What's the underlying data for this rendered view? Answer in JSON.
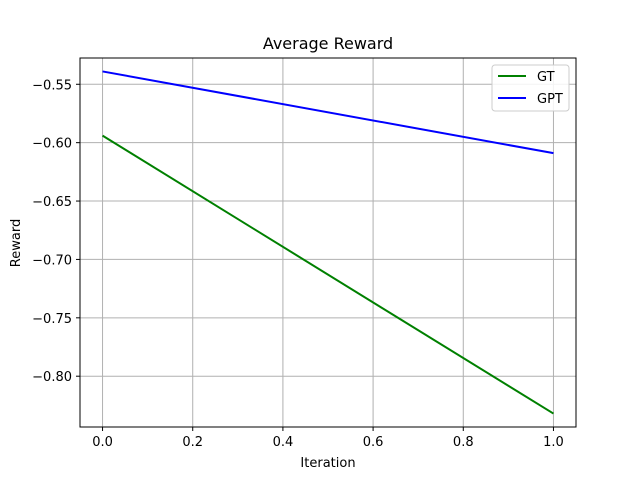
{
  "chart_data": {
    "type": "line",
    "title": "Average Reward",
    "xlabel": "Iteration",
    "ylabel": "Reward",
    "xlim": [
      -0.05,
      1.05
    ],
    "ylim": [
      -0.8435,
      -0.5275
    ],
    "xticks": [
      0.0,
      0.2,
      0.4,
      0.6,
      0.8,
      1.0
    ],
    "xtick_labels": [
      "0.0",
      "0.2",
      "0.4",
      "0.6",
      "0.8",
      "1.0"
    ],
    "yticks": [
      -0.55,
      -0.6,
      -0.65,
      -0.7,
      -0.75,
      -0.8
    ],
    "ytick_labels": [
      "−0.55",
      "−0.60",
      "−0.65",
      "−0.70",
      "−0.75",
      "−0.80"
    ],
    "grid": true,
    "legend_position": "top-right",
    "series": [
      {
        "name": "GT",
        "color": "#008000",
        "x": [
          0.0,
          1.0
        ],
        "y": [
          -0.594,
          -0.832
        ]
      },
      {
        "name": "GPT",
        "color": "#0000ff",
        "x": [
          0.0,
          1.0
        ],
        "y": [
          -0.539,
          -0.609
        ]
      }
    ]
  }
}
